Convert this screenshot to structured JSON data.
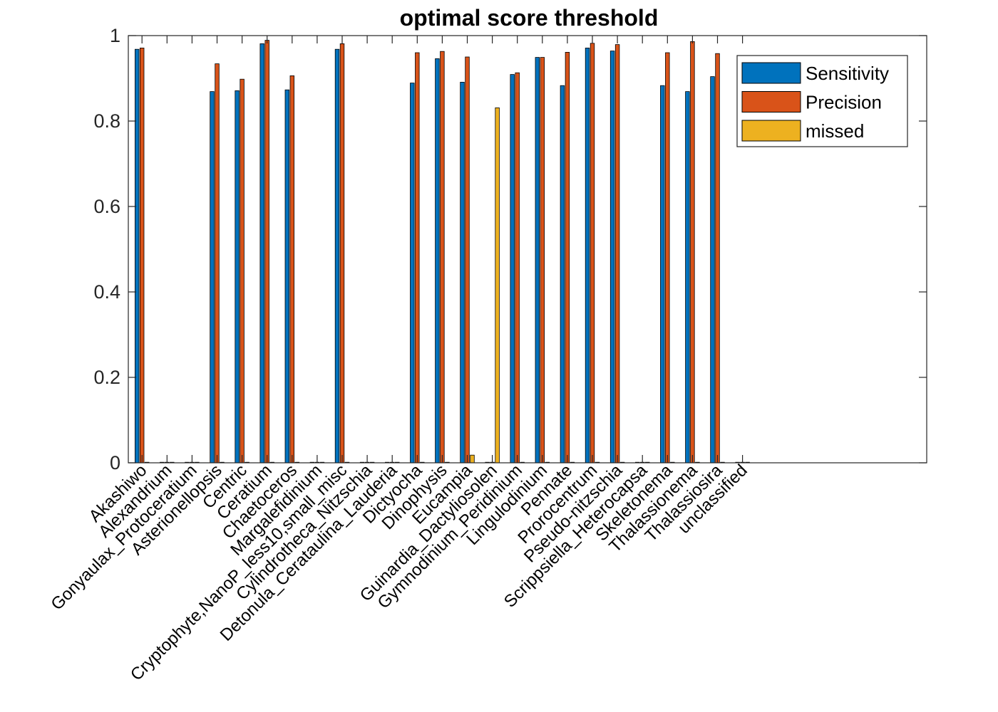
{
  "chart_data": {
    "type": "bar",
    "title": "optimal score threshold",
    "xlabel": "",
    "ylabel": "",
    "ylim": [
      0,
      1
    ],
    "yticks": [
      "0",
      "0.2",
      "0.4",
      "0.6",
      "0.8",
      "1"
    ],
    "grid": false,
    "legend_position": "top-right",
    "categories": [
      "Akashiwo",
      "Alexandrium",
      "Gonyaulax_Protoceratium",
      "Asterionellopsis",
      "Centric",
      "Ceratium",
      "Chaetoceros",
      "Margalefidinium",
      "Cryptophyte,NanoP_less10,small_misc",
      "Cylindrotheca_Nitzschia",
      "Detonula_Cerataulina_Lauderia",
      "Dictyocha",
      "Dinophysis",
      "Eucampia",
      "Guinardia_Dactyliosolen",
      "Gymnodinium_Peridinium",
      "Lingulodinium",
      "Pennate",
      "Prorocentrum",
      "Pseudo-nitzschia",
      "Scrippsiella_Heterocapsa",
      "Skeletonema",
      "Thalassionema",
      "Thalassiosira",
      "unclassified"
    ],
    "series": [
      {
        "name": "Sensitivity",
        "color": "#0072BD",
        "values": [
          0.968,
          0,
          0,
          0.869,
          0.871,
          0.981,
          0.873,
          0,
          0.968,
          0,
          0,
          0.889,
          0.946,
          0.891,
          0,
          0.909,
          0.949,
          0.883,
          0.971,
          0.964,
          0,
          0.883,
          0.869,
          0.904,
          0
        ]
      },
      {
        "name": "Precision",
        "color": "#D95319",
        "values": [
          0.971,
          0,
          0,
          0.934,
          0.898,
          0.989,
          0.906,
          0,
          0.981,
          0,
          0,
          0.96,
          0.963,
          0.95,
          0,
          0.913,
          0.949,
          0.961,
          0.982,
          0.979,
          0,
          0.96,
          0.986,
          0.958,
          0
        ]
      },
      {
        "name": "missed",
        "color": "#EDB120",
        "values": [
          0,
          0,
          0,
          0,
          0,
          0,
          0,
          0,
          0,
          0,
          0,
          0,
          0,
          0.018,
          0.831,
          0,
          0,
          0,
          0,
          0,
          0,
          0,
          0,
          0,
          0
        ]
      }
    ]
  }
}
